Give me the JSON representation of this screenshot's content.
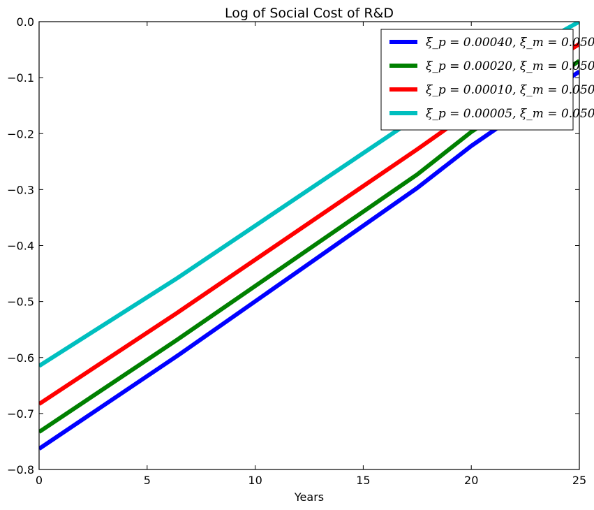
{
  "chart_data": {
    "type": "line",
    "title": "Log of Social Cost of R&D",
    "xlabel": "Years",
    "ylabel": "",
    "xlim": [
      0,
      25
    ],
    "ylim": [
      -0.8,
      0.0
    ],
    "xticks": [
      0,
      5,
      10,
      15,
      20,
      25
    ],
    "xtick_labels": [
      "0",
      "5",
      "10",
      "15",
      "20",
      "25"
    ],
    "yticks": [
      -0.8,
      -0.7,
      -0.6,
      -0.5,
      -0.4,
      -0.3,
      -0.2,
      -0.1,
      0.0
    ],
    "ytick_labels": [
      "−0.8",
      "−0.7",
      "−0.6",
      "−0.5",
      "−0.4",
      "−0.3",
      "−0.2",
      "−0.1",
      "0.0"
    ],
    "grid": false,
    "legend_position": "top-right",
    "series": [
      {
        "name": "ξ_p = 0.00040, ξ_m = 0.050",
        "color": "#0000ff",
        "x": [
          0,
          6.4,
          17.5,
          20,
          25
        ],
        "y": [
          -0.763,
          -0.597,
          -0.297,
          -0.222,
          -0.089
        ]
      },
      {
        "name": "ξ_p = 0.00020, ξ_m = 0.050",
        "color": "#008000",
        "x": [
          0,
          6.4,
          17.5,
          20,
          25
        ],
        "y": [
          -0.733,
          -0.568,
          -0.273,
          -0.197,
          -0.07
        ]
      },
      {
        "name": "ξ_p = 0.00010, ξ_m = 0.050",
        "color": "#ff0000",
        "x": [
          0,
          6.4,
          17.5,
          20,
          25
        ],
        "y": [
          -0.683,
          -0.52,
          -0.228,
          -0.16,
          -0.04
        ]
      },
      {
        "name": "ξ_p = 0.00005, ξ_m = 0.050",
        "color": "#00bfbf",
        "x": [
          0,
          6.4,
          17.5,
          20,
          25
        ],
        "y": [
          -0.615,
          -0.458,
          -0.17,
          -0.108,
          0.0
        ]
      }
    ]
  }
}
